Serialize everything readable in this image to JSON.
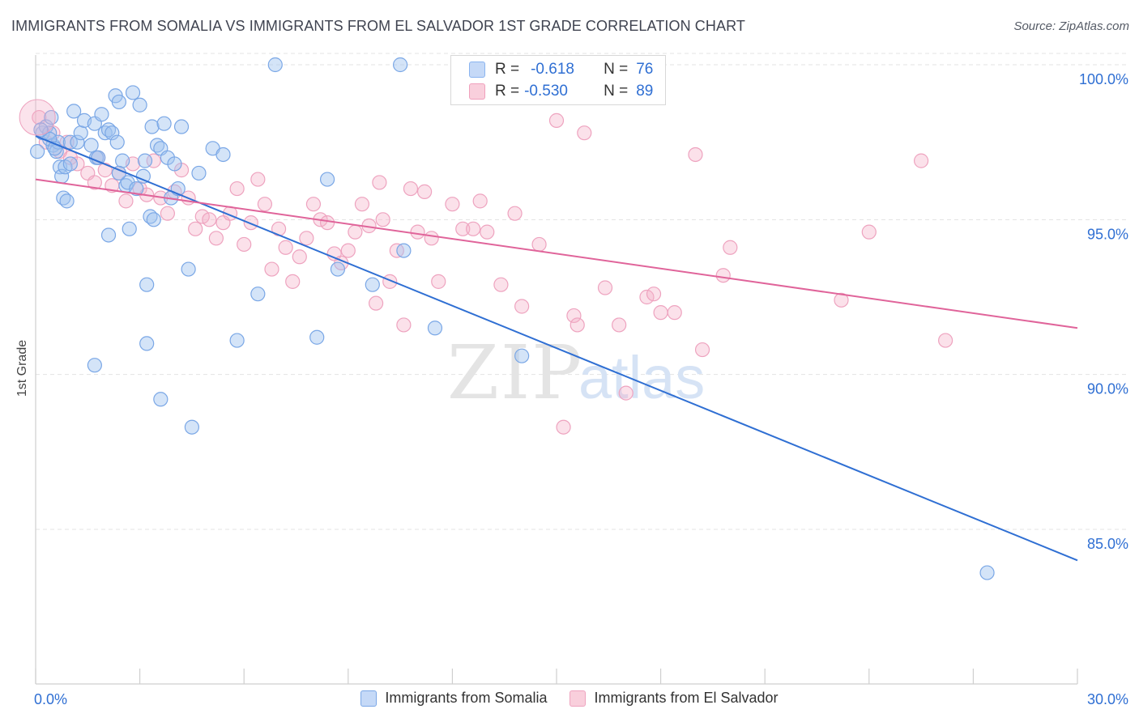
{
  "title": "IMMIGRANTS FROM SOMALIA VS IMMIGRANTS FROM EL SALVADOR 1ST GRADE CORRELATION CHART",
  "source": "Source: ZipAtlas.com",
  "watermark": {
    "zip": "ZIP",
    "atlas": "atlas"
  },
  "stats": [
    {
      "r_label": "R =",
      "r_value": "-0.618",
      "n_label": "N =",
      "n_value": "76",
      "color": "#8ab4f0",
      "fill": "#c5d9f7"
    },
    {
      "r_label": "R =",
      "r_value": "-0.530",
      "n_label": "N =",
      "n_value": "89",
      "color": "#f0a0bc",
      "fill": "#f9cfdc"
    }
  ],
  "chart_data": {
    "type": "scatter",
    "title": "IMMIGRANTS FROM SOMALIA VS IMMIGRANTS FROM EL SALVADOR 1ST GRADE CORRELATION CHART",
    "xlabel": "",
    "ylabel": "1st Grade",
    "xlim": [
      0,
      30
    ],
    "ylim": [
      80.5,
      100.8
    ],
    "x_tick_labels": [
      "0.0%",
      "30.0%"
    ],
    "y_ticks": [
      100,
      95,
      90,
      85
    ],
    "y_tick_labels": [
      "100.0%",
      "95.0%",
      "90.0%",
      "85.0%"
    ],
    "grid": true,
    "legend_position": "bottom",
    "series": [
      {
        "name": "Immigrants from Somalia",
        "color": "#2f6fd3",
        "marker_fill": "rgba(160,196,240,0.45)",
        "marker_stroke": "#7aa7e6",
        "trend": {
          "x": [
            0,
            30
          ],
          "y": [
            97.7,
            84.0
          ]
        },
        "points": [
          [
            0.05,
            97.2
          ],
          [
            0.2,
            97.8
          ],
          [
            0.3,
            98.0
          ],
          [
            0.4,
            97.8
          ],
          [
            0.45,
            98.3
          ],
          [
            0.5,
            97.4
          ],
          [
            0.6,
            97.2
          ],
          [
            0.65,
            97.5
          ],
          [
            0.7,
            96.7
          ],
          [
            0.75,
            96.4
          ],
          [
            0.8,
            95.7
          ],
          [
            0.85,
            96.7
          ],
          [
            0.9,
            95.6
          ],
          [
            1.0,
            97.5
          ],
          [
            1.1,
            98.5
          ],
          [
            1.2,
            97.5
          ],
          [
            1.3,
            97.8
          ],
          [
            1.4,
            98.2
          ],
          [
            1.6,
            97.4
          ],
          [
            1.7,
            98.1
          ],
          [
            1.75,
            97.0
          ],
          [
            1.8,
            97.0
          ],
          [
            1.9,
            98.4
          ],
          [
            2.0,
            97.8
          ],
          [
            2.1,
            97.9
          ],
          [
            2.2,
            97.8
          ],
          [
            2.3,
            99.0
          ],
          [
            2.35,
            97.5
          ],
          [
            2.4,
            98.8
          ],
          [
            2.5,
            96.9
          ],
          [
            2.6,
            96.1
          ],
          [
            2.65,
            96.2
          ],
          [
            2.7,
            94.7
          ],
          [
            2.8,
            99.1
          ],
          [
            2.9,
            96.0
          ],
          [
            3.0,
            98.7
          ],
          [
            3.1,
            96.4
          ],
          [
            3.15,
            96.9
          ],
          [
            3.2,
            92.9
          ],
          [
            3.3,
            95.1
          ],
          [
            3.35,
            98.0
          ],
          [
            3.4,
            95.0
          ],
          [
            3.5,
            97.4
          ],
          [
            3.6,
            97.3
          ],
          [
            3.7,
            98.1
          ],
          [
            3.8,
            97.0
          ],
          [
            3.9,
            95.7
          ],
          [
            4.0,
            96.8
          ],
          [
            4.1,
            96.0
          ],
          [
            4.2,
            98.0
          ],
          [
            4.4,
            93.4
          ],
          [
            4.7,
            96.5
          ],
          [
            5.1,
            97.3
          ],
          [
            5.4,
            97.1
          ],
          [
            5.8,
            91.1
          ],
          [
            6.4,
            92.6
          ],
          [
            6.9,
            100.0
          ],
          [
            8.1,
            91.2
          ],
          [
            8.4,
            96.3
          ],
          [
            8.7,
            93.4
          ],
          [
            9.7,
            92.9
          ],
          [
            10.6,
            94.0
          ],
          [
            10.5,
            100.0
          ],
          [
            11.5,
            91.5
          ],
          [
            14.0,
            90.6
          ],
          [
            27.4,
            83.6
          ],
          [
            1.7,
            90.3
          ],
          [
            3.2,
            91.0
          ],
          [
            3.6,
            89.2
          ],
          [
            4.5,
            88.3
          ],
          [
            2.1,
            94.5
          ],
          [
            0.4,
            97.6
          ],
          [
            0.15,
            97.9
          ],
          [
            1.0,
            96.8
          ],
          [
            0.55,
            97.3
          ],
          [
            2.4,
            96.5
          ]
        ]
      },
      {
        "name": "Immigrants from El Salvador",
        "color": "#e0649a",
        "marker_fill": "rgba(244,176,200,0.38)",
        "marker_stroke": "#eea3bf",
        "trend": {
          "x": [
            0,
            30
          ],
          "y": [
            96.3,
            91.5
          ]
        },
        "points": [
          [
            0.1,
            98.3
          ],
          [
            0.3,
            97.5
          ],
          [
            0.5,
            97.8
          ],
          [
            0.7,
            97.2
          ],
          [
            0.9,
            97.5
          ],
          [
            1.0,
            97.0
          ],
          [
            1.2,
            96.8
          ],
          [
            1.5,
            96.5
          ],
          [
            1.7,
            96.2
          ],
          [
            1.8,
            97.0
          ],
          [
            2.0,
            96.6
          ],
          [
            2.2,
            96.1
          ],
          [
            2.4,
            96.5
          ],
          [
            2.6,
            95.6
          ],
          [
            2.8,
            96.8
          ],
          [
            3.0,
            96.0
          ],
          [
            3.2,
            95.8
          ],
          [
            3.4,
            96.9
          ],
          [
            3.6,
            95.7
          ],
          [
            3.8,
            95.2
          ],
          [
            4.0,
            95.9
          ],
          [
            4.2,
            96.6
          ],
          [
            4.4,
            95.7
          ],
          [
            4.6,
            94.7
          ],
          [
            4.8,
            95.1
          ],
          [
            5.0,
            95.0
          ],
          [
            5.2,
            94.4
          ],
          [
            5.4,
            94.9
          ],
          [
            5.6,
            95.2
          ],
          [
            5.8,
            96.0
          ],
          [
            6.0,
            94.2
          ],
          [
            6.2,
            94.9
          ],
          [
            6.4,
            96.3
          ],
          [
            6.6,
            95.5
          ],
          [
            6.8,
            93.4
          ],
          [
            7.0,
            94.7
          ],
          [
            7.2,
            94.1
          ],
          [
            7.4,
            93.0
          ],
          [
            7.6,
            93.8
          ],
          [
            7.8,
            94.4
          ],
          [
            8.0,
            95.5
          ],
          [
            8.2,
            95.0
          ],
          [
            8.4,
            94.9
          ],
          [
            8.6,
            93.9
          ],
          [
            8.8,
            93.6
          ],
          [
            9.0,
            94.0
          ],
          [
            9.2,
            94.6
          ],
          [
            9.4,
            95.5
          ],
          [
            9.6,
            94.8
          ],
          [
            9.8,
            92.3
          ],
          [
            10.0,
            95.0
          ],
          [
            10.2,
            93.0
          ],
          [
            10.4,
            94.0
          ],
          [
            10.6,
            91.6
          ],
          [
            10.8,
            96.0
          ],
          [
            11.0,
            94.6
          ],
          [
            11.2,
            95.9
          ],
          [
            11.4,
            94.4
          ],
          [
            11.6,
            93.0
          ],
          [
            12.0,
            95.5
          ],
          [
            12.3,
            94.7
          ],
          [
            12.6,
            94.7
          ],
          [
            12.8,
            95.6
          ],
          [
            13.0,
            94.6
          ],
          [
            13.4,
            92.9
          ],
          [
            13.8,
            95.2
          ],
          [
            14.0,
            92.2
          ],
          [
            14.5,
            94.2
          ],
          [
            15.0,
            98.2
          ],
          [
            15.2,
            88.3
          ],
          [
            15.5,
            91.9
          ],
          [
            15.6,
            91.6
          ],
          [
            15.8,
            97.8
          ],
          [
            16.4,
            92.8
          ],
          [
            16.8,
            91.6
          ],
          [
            17.0,
            89.4
          ],
          [
            17.6,
            92.5
          ],
          [
            17.8,
            92.6
          ],
          [
            18.0,
            92.0
          ],
          [
            18.4,
            92.0
          ],
          [
            19.0,
            97.1
          ],
          [
            19.2,
            90.8
          ],
          [
            19.8,
            93.2
          ],
          [
            20.0,
            94.1
          ],
          [
            23.2,
            92.4
          ],
          [
            24.0,
            94.6
          ],
          [
            25.5,
            96.9
          ],
          [
            26.2,
            91.1
          ],
          [
            9.9,
            96.2
          ]
        ]
      }
    ]
  },
  "legend": [
    {
      "label": "Immigrants from Somalia",
      "stroke": "#7aa7e6",
      "fill": "#c5d9f7"
    },
    {
      "label": "Immigrants from El Salvador",
      "stroke": "#eea3bf",
      "fill": "#f9cfdc"
    }
  ]
}
